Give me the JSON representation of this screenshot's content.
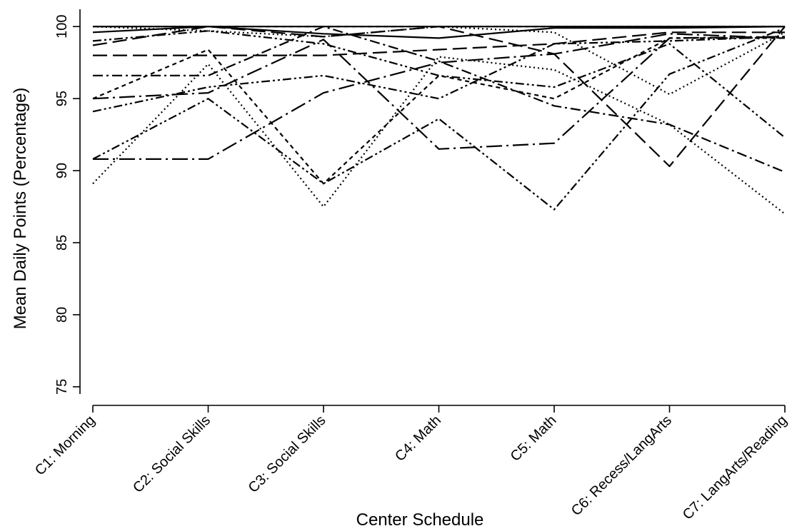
{
  "chart_data": {
    "type": "line",
    "title": "",
    "xlabel": "Center Schedule",
    "ylabel": "Mean Daily Points (Percentage)",
    "categories": [
      "C1: Morning",
      "C2: Social Skills",
      "C3: Social Skills",
      "C4: Math",
      "C5: Math",
      "C6: Recess/LangArts",
      "C7: LangArts/Reading"
    ],
    "yticks": [
      75,
      80,
      85,
      90,
      95,
      100
    ],
    "ylim": [
      74.5,
      101.2
    ],
    "grid": false,
    "legend": "none",
    "series": [
      {
        "dash": "solid",
        "values": [
          99.6,
          100,
          99.5,
          99.2,
          99.9,
          99.9,
          100
        ]
      },
      {
        "dash": "solid",
        "values": [
          100,
          100,
          100,
          100,
          100,
          100,
          100
        ]
      },
      {
        "dash": "longdash",
        "values": [
          98.0,
          98.0,
          98.0,
          98.4,
          98.8,
          99.6,
          99.6
        ]
      },
      {
        "dash": "longdash",
        "values": [
          98.7,
          100,
          99.3,
          100,
          98.1,
          90.3,
          100
        ]
      },
      {
        "dash": "dashed",
        "values": [
          100,
          100,
          100,
          100,
          100,
          100,
          100
        ]
      },
      {
        "dash": "dot",
        "values": [
          100,
          99.7,
          99.3,
          100,
          99.6,
          95.3,
          99.6
        ]
      },
      {
        "dash": "dot",
        "values": [
          89.1,
          97.4,
          87.5,
          97.9,
          97.0,
          93.2,
          87.0
        ]
      },
      {
        "dash": "dashdot",
        "values": [
          96.6,
          96.6,
          100,
          97.6,
          94.5,
          93.2,
          89.9
        ]
      },
      {
        "dash": "longdashdot",
        "values": [
          90.8,
          90.8,
          95.4,
          97.5,
          98.1,
          99.5,
          99.2
        ]
      },
      {
        "dash": "longdashdot",
        "values": [
          95.0,
          95.4,
          99.1,
          91.5,
          91.9,
          99.2,
          99.3
        ]
      },
      {
        "dash": "dashdotdot",
        "values": [
          94.1,
          95.8,
          96.6,
          95.0,
          98.8,
          99.0,
          99.3
        ]
      },
      {
        "dash": "dashdotdot",
        "values": [
          90.8,
          95.0,
          89.1,
          93.6,
          87.3,
          96.7,
          99.9
        ]
      },
      {
        "dash": "dashdotdot",
        "values": [
          99.0,
          99.7,
          98.8,
          96.6,
          95.8,
          98.8,
          92.3
        ]
      },
      {
        "dash": "dashed",
        "values": [
          95.0,
          98.4,
          89.1,
          96.6,
          95.0,
          99.2,
          99.2
        ]
      }
    ]
  }
}
